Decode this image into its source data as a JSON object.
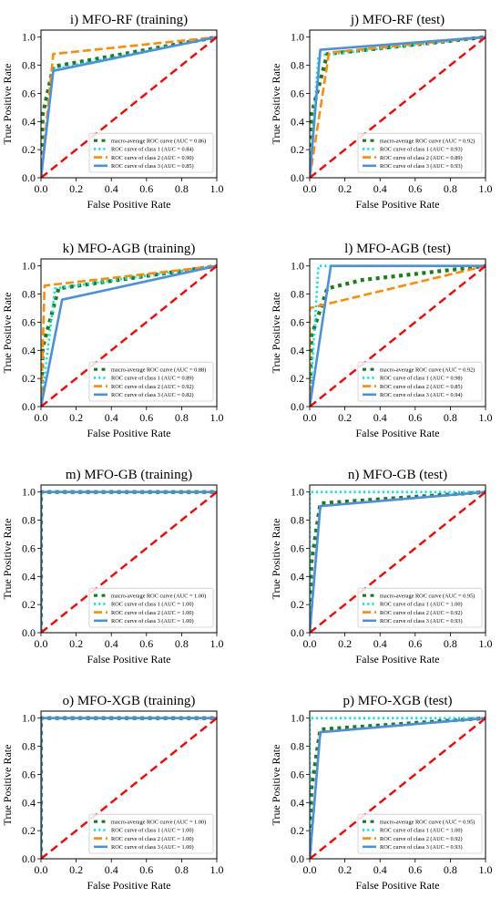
{
  "figure": {
    "colors": {
      "macro": "#1a7f1a",
      "class1": "#00e5ee",
      "class2": "#ff8c00",
      "class3": "#4a90e2",
      "diag": "#ff0000"
    }
  },
  "chart_data": [
    {
      "type": "line",
      "title": "i) MFO-RF (training)",
      "xlabel": "False Positive Rate",
      "ylabel": "True Positive Rate",
      "xlim": [
        0,
        1
      ],
      "ylim": [
        0,
        1.05
      ],
      "xticks": [
        "0.0",
        "0.2",
        "0.4",
        "0.6",
        "0.8",
        "1.0"
      ],
      "yticks": [
        "0.0",
        "0.2",
        "0.4",
        "0.6",
        "0.8",
        "1.0"
      ],
      "legend_position": "lower right",
      "series": [
        {
          "name": "macro-average ROC curve (AUC = 0.86)",
          "style": "macro",
          "x": [
            0,
            0.01,
            0.07,
            1
          ],
          "y": [
            0,
            0.45,
            0.79,
            1
          ]
        },
        {
          "name": "ROC curve of class 1 (AUC = 0.84)",
          "style": "class1",
          "x": [
            0,
            0.07,
            1
          ],
          "y": [
            0,
            0.77,
            1
          ]
        },
        {
          "name": "ROC curve of class 2 (AUC = 0.90)",
          "style": "class2",
          "x": [
            0,
            0.07,
            1
          ],
          "y": [
            0,
            0.88,
            1
          ]
        },
        {
          "name": "ROC curve of class 3 (AUC = 0.85)",
          "style": "class3",
          "x": [
            0,
            0.07,
            1
          ],
          "y": [
            0,
            0.76,
            1
          ]
        },
        {
          "name": "",
          "style": "diag",
          "x": [
            0,
            1
          ],
          "y": [
            0,
            1
          ]
        }
      ]
    },
    {
      "type": "line",
      "title": "j) MFO-RF (test)",
      "xlabel": "False Positive Rate",
      "ylabel": "True Positive Rate",
      "xlim": [
        0,
        1
      ],
      "ylim": [
        0,
        1.05
      ],
      "xticks": [
        "0.0",
        "0.2",
        "0.4",
        "0.6",
        "0.8",
        "1.0"
      ],
      "yticks": [
        "0.0",
        "0.2",
        "0.4",
        "0.6",
        "0.8",
        "1.0"
      ],
      "legend_position": "lower right",
      "series": [
        {
          "name": "macro-average ROC curve (AUC = 0.92)",
          "style": "macro",
          "x": [
            0,
            0.01,
            0.1,
            1
          ],
          "y": [
            0,
            0.45,
            0.88,
            1
          ]
        },
        {
          "name": "ROC curve of class 1 (AUC = 0.93)",
          "style": "class1",
          "x": [
            0,
            0.05,
            1
          ],
          "y": [
            0,
            0.87,
            1
          ]
        },
        {
          "name": "ROC curve of class 2 (AUC = 0.89)",
          "style": "class2",
          "x": [
            0,
            0.11,
            1
          ],
          "y": [
            0,
            0.89,
            1
          ]
        },
        {
          "name": "ROC curve of class 3 (AUC = 0.93)",
          "style": "class3",
          "x": [
            0,
            0.06,
            1
          ],
          "y": [
            0,
            0.91,
            1
          ]
        },
        {
          "name": "",
          "style": "diag",
          "x": [
            0,
            1
          ],
          "y": [
            0,
            1
          ]
        }
      ]
    },
    {
      "type": "line",
      "title": "k) MFO-AGB (training)",
      "xlabel": "False Positive Rate",
      "ylabel": "True Positive Rate",
      "xlim": [
        0,
        1
      ],
      "ylim": [
        0,
        1.05
      ],
      "xticks": [
        "0.0",
        "0.2",
        "0.4",
        "0.6",
        "0.8",
        "1.0"
      ],
      "yticks": [
        "0.0",
        "0.2",
        "0.4",
        "0.6",
        "0.8",
        "1.0"
      ],
      "legend_position": "lower right",
      "series": [
        {
          "name": "macro-average ROC curve (AUC = 0.88)",
          "style": "macro",
          "x": [
            0,
            0.01,
            0.1,
            1
          ],
          "y": [
            0,
            0.42,
            0.84,
            1
          ]
        },
        {
          "name": "ROC curve of class 1 (AUC = 0.89)",
          "style": "class1",
          "x": [
            0,
            0.08,
            1
          ],
          "y": [
            0,
            0.84,
            1
          ]
        },
        {
          "name": "ROC curve of class 2 (AUC = 0.92)",
          "style": "class2",
          "x": [
            0,
            0.02,
            1
          ],
          "y": [
            0,
            0.86,
            1
          ]
        },
        {
          "name": "ROC curve of class 3 (AUC = 0.82)",
          "style": "class3",
          "x": [
            0,
            0.12,
            1
          ],
          "y": [
            0,
            0.76,
            1
          ]
        },
        {
          "name": "",
          "style": "diag",
          "x": [
            0,
            1
          ],
          "y": [
            0,
            1
          ]
        }
      ]
    },
    {
      "type": "line",
      "title": "l) MFO-AGB (test)",
      "xlabel": "False Positive Rate",
      "ylabel": "True Positive Rate",
      "xlim": [
        0,
        1
      ],
      "ylim": [
        0,
        1.05
      ],
      "xticks": [
        "0.0",
        "0.2",
        "0.4",
        "0.6",
        "0.8",
        "1.0"
      ],
      "yticks": [
        "0.0",
        "0.2",
        "0.4",
        "0.6",
        "0.8",
        "1.0"
      ],
      "legend_position": "lower right",
      "series": [
        {
          "name": "macro-average ROC curve (AUC = 0.92)",
          "style": "macro",
          "x": [
            0,
            0.01,
            0.1,
            0.3,
            1
          ],
          "y": [
            0,
            0.5,
            0.84,
            0.9,
            1
          ]
        },
        {
          "name": "ROC curve of class 1 (AUC = 0.98)",
          "style": "class1",
          "x": [
            0,
            0.05,
            1
          ],
          "y": [
            0,
            1.0,
            1
          ]
        },
        {
          "name": "ROC curve of class 2 (AUC = 0.85)",
          "style": "class2",
          "x": [
            0,
            0.0,
            1
          ],
          "y": [
            0,
            0.7,
            1
          ]
        },
        {
          "name": "ROC curve of class 3 (AUC = 0.94)",
          "style": "class3",
          "x": [
            0,
            0.12,
            1
          ],
          "y": [
            0,
            1.0,
            1
          ]
        },
        {
          "name": "",
          "style": "diag",
          "x": [
            0,
            1
          ],
          "y": [
            0,
            1
          ]
        }
      ]
    },
    {
      "type": "line",
      "title": "m) MFO-GB (training)",
      "xlabel": "False Positive Rate",
      "ylabel": "True Positive Rate",
      "xlim": [
        0,
        1
      ],
      "ylim": [
        0,
        1.05
      ],
      "xticks": [
        "0.0",
        "0.2",
        "0.4",
        "0.6",
        "0.8",
        "1.0"
      ],
      "yticks": [
        "0.0",
        "0.2",
        "0.4",
        "0.6",
        "0.8",
        "1.0"
      ],
      "legend_position": "lower right",
      "series": [
        {
          "name": "macro-average ROC curve (AUC = 1.00)",
          "style": "macro",
          "x": [
            0,
            0,
            1
          ],
          "y": [
            0,
            1,
            1
          ]
        },
        {
          "name": "ROC curve of class 1 (AUC = 1.00)",
          "style": "class1",
          "x": [
            0,
            0,
            1
          ],
          "y": [
            0,
            1,
            1
          ]
        },
        {
          "name": "ROC curve of class 2 (AUC = 1.00)",
          "style": "class2",
          "x": [
            0,
            0,
            1
          ],
          "y": [
            0,
            1,
            1
          ]
        },
        {
          "name": "ROC curve of class 3 (AUC = 1.00)",
          "style": "class3",
          "x": [
            0,
            0,
            1
          ],
          "y": [
            0,
            1,
            1
          ]
        },
        {
          "name": "",
          "style": "diag",
          "x": [
            0,
            1
          ],
          "y": [
            0,
            1
          ]
        }
      ]
    },
    {
      "type": "line",
      "title": "n) MFO-GB (test)",
      "xlabel": "False Positive Rate",
      "ylabel": "True Positive Rate",
      "xlim": [
        0,
        1
      ],
      "ylim": [
        0,
        1.05
      ],
      "xticks": [
        "0.0",
        "0.2",
        "0.4",
        "0.6",
        "0.8",
        "1.0"
      ],
      "yticks": [
        "0.0",
        "0.2",
        "0.4",
        "0.6",
        "0.8",
        "1.0"
      ],
      "legend_position": "lower right",
      "series": [
        {
          "name": "macro-average ROC curve (AUC = 0.95)",
          "style": "macro",
          "x": [
            0,
            0.01,
            0.06,
            1
          ],
          "y": [
            0,
            0.5,
            0.92,
            1
          ]
        },
        {
          "name": "ROC curve of class 1 (AUC = 1.00)",
          "style": "class1",
          "x": [
            0,
            0,
            1
          ],
          "y": [
            0,
            1,
            1
          ]
        },
        {
          "name": "ROC curve of class 2 (AUC = 0.92)",
          "style": "class2",
          "x": [
            0,
            0.06,
            1
          ],
          "y": [
            0,
            0.9,
            1
          ]
        },
        {
          "name": "ROC curve of class 3 (AUC = 0.93)",
          "style": "class3",
          "x": [
            0,
            0.06,
            1
          ],
          "y": [
            0,
            0.9,
            1
          ]
        },
        {
          "name": "",
          "style": "diag",
          "x": [
            0,
            1
          ],
          "y": [
            0,
            1
          ]
        }
      ]
    },
    {
      "type": "line",
      "title": "o) MFO-XGB (training)",
      "xlabel": "False Positive Rate",
      "ylabel": "True Positive Rate",
      "xlim": [
        0,
        1
      ],
      "ylim": [
        0,
        1.05
      ],
      "xticks": [
        "0.0",
        "0.2",
        "0.4",
        "0.6",
        "0.8",
        "1.0"
      ],
      "yticks": [
        "0.0",
        "0.2",
        "0.4",
        "0.6",
        "0.8",
        "1.0"
      ],
      "legend_position": "lower right",
      "series": [
        {
          "name": "macro-average ROC curve (AUC = 1.00)",
          "style": "macro",
          "x": [
            0,
            0,
            1
          ],
          "y": [
            0,
            1,
            1
          ]
        },
        {
          "name": "ROC curve of class 1 (AUC = 1.00)",
          "style": "class1",
          "x": [
            0,
            0,
            1
          ],
          "y": [
            0,
            1,
            1
          ]
        },
        {
          "name": "ROC curve of class 2 (AUC = 1.00)",
          "style": "class2",
          "x": [
            0,
            0,
            1
          ],
          "y": [
            0,
            1,
            1
          ]
        },
        {
          "name": "ROC curve of class 3 (AUC = 1.00)",
          "style": "class3",
          "x": [
            0,
            0,
            1
          ],
          "y": [
            0,
            1,
            1
          ]
        },
        {
          "name": "",
          "style": "diag",
          "x": [
            0,
            1
          ],
          "y": [
            0,
            1
          ]
        }
      ]
    },
    {
      "type": "line",
      "title": "p) MFO-XGB (test)",
      "xlabel": "False Positive Rate",
      "ylabel": "True Positive Rate",
      "xlim": [
        0,
        1
      ],
      "ylim": [
        0,
        1.05
      ],
      "xticks": [
        "0.0",
        "0.2",
        "0.4",
        "0.6",
        "0.8",
        "1.0"
      ],
      "yticks": [
        "0.0",
        "0.2",
        "0.4",
        "0.6",
        "0.8",
        "1.0"
      ],
      "legend_position": "lower right",
      "series": [
        {
          "name": "macro-average ROC curve (AUC = 0.95)",
          "style": "macro",
          "x": [
            0,
            0.01,
            0.06,
            1
          ],
          "y": [
            0,
            0.5,
            0.92,
            1
          ]
        },
        {
          "name": "ROC curve of class 1 (AUC = 1.00)",
          "style": "class1",
          "x": [
            0,
            0,
            1
          ],
          "y": [
            0,
            1,
            1
          ]
        },
        {
          "name": "ROC curve of class 2 (AUC = 0.92)",
          "style": "class2",
          "x": [
            0,
            0.06,
            1
          ],
          "y": [
            0,
            0.9,
            1
          ]
        },
        {
          "name": "ROC curve of class 3 (AUC = 0.93)",
          "style": "class3",
          "x": [
            0,
            0.06,
            1
          ],
          "y": [
            0,
            0.9,
            1
          ]
        },
        {
          "name": "",
          "style": "diag",
          "x": [
            0,
            1
          ],
          "y": [
            0,
            1
          ]
        }
      ]
    }
  ]
}
